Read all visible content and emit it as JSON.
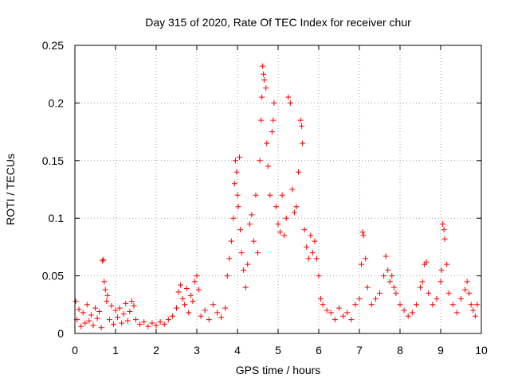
{
  "chart_data": {
    "type": "scatter",
    "title": "Day 315 of 2020, Rate Of TEC Index for receiver chur",
    "xlabel": "GPS time / hours",
    "ylabel": "ROTI / TECUs",
    "xlim": [
      0,
      10
    ],
    "ylim": [
      0,
      0.25
    ],
    "xticks": [
      0,
      1,
      2,
      3,
      4,
      5,
      6,
      7,
      8,
      9,
      10
    ],
    "xtick_labels": [
      "0",
      "1",
      "2",
      "3",
      "4",
      "5",
      "6",
      "7",
      "8",
      "9",
      "10"
    ],
    "yticks": [
      0,
      0.05,
      0.1,
      0.15,
      0.2,
      0.25
    ],
    "ytick_labels": [
      "0",
      "0.05",
      "0.1",
      "0.15",
      "0.2",
      "0.25"
    ],
    "grid": true,
    "marker": "+",
    "color": "#ff0000",
    "series": [
      {
        "name": "ROTI",
        "points": [
          [
            0.02,
            0.028
          ],
          [
            0.05,
            0.012
          ],
          [
            0.1,
            0.021
          ],
          [
            0.15,
            0.006
          ],
          [
            0.2,
            0.018
          ],
          [
            0.25,
            0.009
          ],
          [
            0.3,
            0.025
          ],
          [
            0.35,
            0.011
          ],
          [
            0.4,
            0.016
          ],
          [
            0.45,
            0.007
          ],
          [
            0.5,
            0.022
          ],
          [
            0.55,
            0.013
          ],
          [
            0.6,
            0.019
          ],
          [
            0.65,
            0.005
          ],
          [
            0.68,
            0.063
          ],
          [
            0.7,
            0.064
          ],
          [
            0.72,
            0.045
          ],
          [
            0.75,
            0.038
          ],
          [
            0.78,
            0.028
          ],
          [
            0.8,
            0.033
          ],
          [
            0.85,
            0.012
          ],
          [
            0.9,
            0.024
          ],
          [
            0.95,
            0.008
          ],
          [
            1.0,
            0.02
          ],
          [
            1.05,
            0.014
          ],
          [
            1.1,
            0.022
          ],
          [
            1.15,
            0.009
          ],
          [
            1.2,
            0.017
          ],
          [
            1.25,
            0.026
          ],
          [
            1.3,
            0.011
          ],
          [
            1.35,
            0.019
          ],
          [
            1.4,
            0.028
          ],
          [
            1.45,
            0.024
          ],
          [
            1.5,
            0.012
          ],
          [
            1.6,
            0.008
          ],
          [
            1.7,
            0.01
          ],
          [
            1.8,
            0.006
          ],
          [
            1.9,
            0.009
          ],
          [
            2.0,
            0.007
          ],
          [
            2.1,
            0.01
          ],
          [
            2.2,
            0.008
          ],
          [
            2.3,
            0.012
          ],
          [
            2.4,
            0.015
          ],
          [
            2.5,
            0.022
          ],
          [
            2.55,
            0.036
          ],
          [
            2.6,
            0.042
          ],
          [
            2.65,
            0.03
          ],
          [
            2.7,
            0.025
          ],
          [
            2.75,
            0.039
          ],
          [
            2.8,
            0.018
          ],
          [
            2.85,
            0.033
          ],
          [
            2.9,
            0.028
          ],
          [
            2.95,
            0.045
          ],
          [
            3.0,
            0.05
          ],
          [
            3.05,
            0.038
          ],
          [
            3.1,
            0.015
          ],
          [
            3.2,
            0.02
          ],
          [
            3.3,
            0.012
          ],
          [
            3.4,
            0.025
          ],
          [
            3.5,
            0.018
          ],
          [
            3.6,
            0.014
          ],
          [
            3.7,
            0.022
          ],
          [
            3.75,
            0.05
          ],
          [
            3.8,
            0.065
          ],
          [
            3.85,
            0.08
          ],
          [
            3.9,
            0.1
          ],
          [
            3.93,
            0.13
          ],
          [
            3.95,
            0.15
          ],
          [
            3.98,
            0.14
          ],
          [
            4.0,
            0.12
          ],
          [
            4.02,
            0.11
          ],
          [
            4.05,
            0.153
          ],
          [
            4.07,
            0.09
          ],
          [
            4.1,
            0.07
          ],
          [
            4.15,
            0.055
          ],
          [
            4.2,
            0.04
          ],
          [
            4.25,
            0.06
          ],
          [
            4.3,
            0.095
          ],
          [
            4.35,
            0.103
          ],
          [
            4.4,
            0.08
          ],
          [
            4.45,
            0.12
          ],
          [
            4.5,
            0.07
          ],
          [
            4.55,
            0.15
          ],
          [
            4.58,
            0.185
          ],
          [
            4.6,
            0.205
          ],
          [
            4.62,
            0.232
          ],
          [
            4.64,
            0.225
          ],
          [
            4.66,
            0.22
          ],
          [
            4.7,
            0.213
          ],
          [
            4.72,
            0.165
          ],
          [
            4.75,
            0.145
          ],
          [
            4.8,
            0.12
          ],
          [
            4.85,
            0.175
          ],
          [
            4.88,
            0.185
          ],
          [
            4.9,
            0.2
          ],
          [
            4.95,
            0.11
          ],
          [
            5.0,
            0.095
          ],
          [
            5.05,
            0.088
          ],
          [
            5.1,
            0.12
          ],
          [
            5.15,
            0.085
          ],
          [
            5.2,
            0.1
          ],
          [
            5.25,
            0.205
          ],
          [
            5.3,
            0.2
          ],
          [
            5.35,
            0.125
          ],
          [
            5.4,
            0.105
          ],
          [
            5.45,
            0.11
          ],
          [
            5.5,
            0.14
          ],
          [
            5.55,
            0.185
          ],
          [
            5.58,
            0.18
          ],
          [
            5.6,
            0.165
          ],
          [
            5.65,
            0.09
          ],
          [
            5.7,
            0.075
          ],
          [
            5.75,
            0.065
          ],
          [
            5.8,
            0.085
          ],
          [
            5.85,
            0.07
          ],
          [
            5.9,
            0.08
          ],
          [
            5.95,
            0.065
          ],
          [
            6.0,
            0.05
          ],
          [
            6.05,
            0.03
          ],
          [
            6.1,
            0.025
          ],
          [
            6.2,
            0.02
          ],
          [
            6.3,
            0.018
          ],
          [
            6.4,
            0.012
          ],
          [
            6.5,
            0.022
          ],
          [
            6.6,
            0.015
          ],
          [
            6.7,
            0.018
          ],
          [
            6.8,
            0.012
          ],
          [
            6.9,
            0.025
          ],
          [
            7.0,
            0.03
          ],
          [
            7.05,
            0.06
          ],
          [
            7.08,
            0.088
          ],
          [
            7.1,
            0.085
          ],
          [
            7.15,
            0.065
          ],
          [
            7.2,
            0.04
          ],
          [
            7.3,
            0.025
          ],
          [
            7.4,
            0.03
          ],
          [
            7.5,
            0.035
          ],
          [
            7.6,
            0.05
          ],
          [
            7.65,
            0.067
          ],
          [
            7.7,
            0.055
          ],
          [
            7.75,
            0.045
          ],
          [
            7.8,
            0.05
          ],
          [
            7.85,
            0.04
          ],
          [
            7.9,
            0.035
          ],
          [
            8.0,
            0.025
          ],
          [
            8.1,
            0.02
          ],
          [
            8.2,
            0.015
          ],
          [
            8.3,
            0.018
          ],
          [
            8.4,
            0.025
          ],
          [
            8.5,
            0.04
          ],
          [
            8.55,
            0.045
          ],
          [
            8.6,
            0.06
          ],
          [
            8.65,
            0.062
          ],
          [
            8.7,
            0.035
          ],
          [
            8.8,
            0.025
          ],
          [
            8.9,
            0.03
          ],
          [
            9.0,
            0.045
          ],
          [
            9.02,
            0.055
          ],
          [
            9.05,
            0.095
          ],
          [
            9.08,
            0.09
          ],
          [
            9.1,
            0.082
          ],
          [
            9.15,
            0.06
          ],
          [
            9.2,
            0.035
          ],
          [
            9.3,
            0.025
          ],
          [
            9.4,
            0.018
          ],
          [
            9.5,
            0.03
          ],
          [
            9.6,
            0.038
          ],
          [
            9.65,
            0.045
          ],
          [
            9.7,
            0.035
          ],
          [
            9.75,
            0.025
          ],
          [
            9.8,
            0.02
          ],
          [
            9.85,
            0.015
          ],
          [
            9.9,
            0.025
          ]
        ]
      }
    ]
  }
}
